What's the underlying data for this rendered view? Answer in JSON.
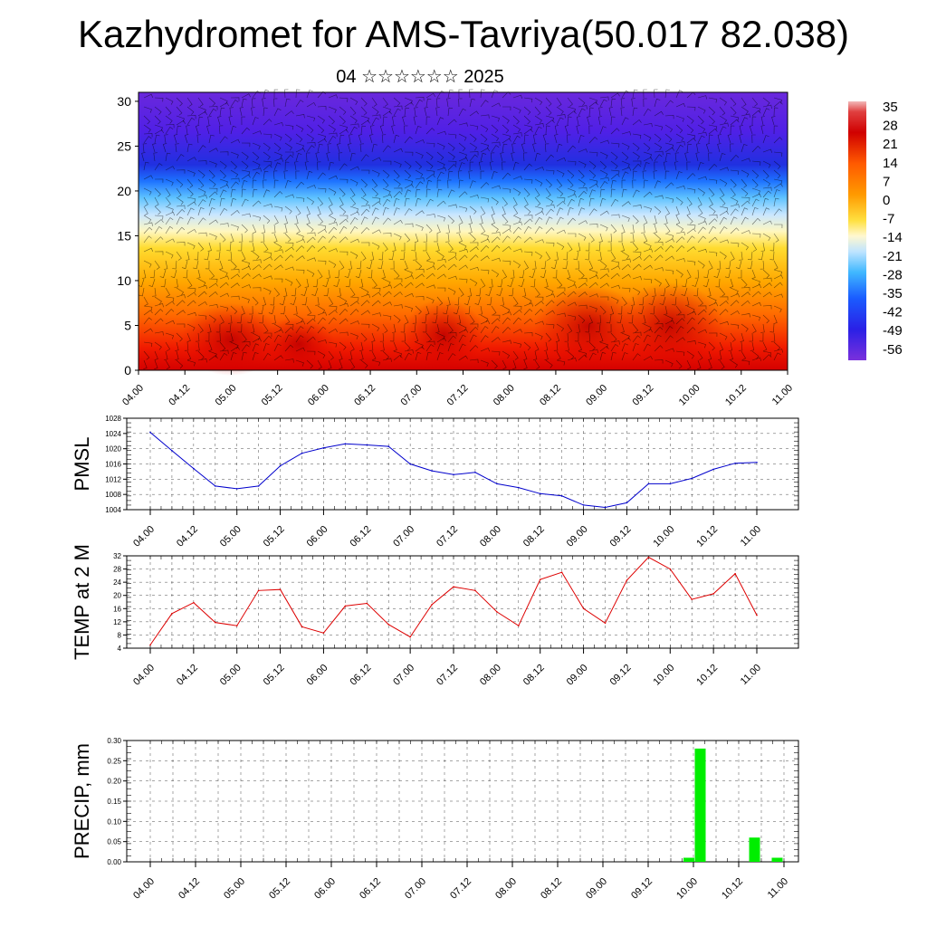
{
  "title": "Kazhydromet for AMS-Tavriya(50.017 82.038)",
  "subtitle": "04 ☆☆☆☆☆☆ 2025",
  "colors": {
    "pmsl_line": "#0000cc",
    "temp_line": "#dd0000",
    "precip_bar": "#00ee00"
  },
  "chart_data": [
    {
      "type": "heatmap",
      "title": "",
      "xlabel": "",
      "ylabel": "",
      "x_ticks": [
        "04.00",
        "04.12",
        "05.00",
        "05.12",
        "06.00",
        "06.12",
        "07.00",
        "07.12",
        "08.00",
        "08.12",
        "09.00",
        "09.12",
        "10.00",
        "10.12",
        "11.00"
      ],
      "y_ticks": [
        "0",
        "5",
        "10",
        "15",
        "20",
        "25",
        "30"
      ],
      "ylim": [
        0,
        31
      ],
      "colorbar_labels": [
        "35",
        "28",
        "21",
        "14",
        "7",
        "0",
        "-7",
        "-14",
        "-21",
        "-28",
        "-35",
        "-42",
        "-49",
        "-56"
      ],
      "overlay": "wind barbs"
    },
    {
      "type": "line",
      "ylabel": "PMSL",
      "ylim": [
        1004,
        1028
      ],
      "y_ticks": [
        "1028",
        "1024",
        "1020",
        "1016",
        "1012",
        "1008",
        "1004"
      ],
      "x_ticks": [
        "04.00",
        "04.12",
        "05.00",
        "05.12",
        "06.00",
        "06.12",
        "07.00",
        "07.12",
        "08.00",
        "08.12",
        "09.00",
        "09.12",
        "10.00",
        "10.12",
        "11.00"
      ],
      "x": [
        0,
        1,
        2,
        3,
        4,
        5,
        6,
        7,
        8,
        9,
        10,
        11,
        12,
        13,
        14,
        15,
        16,
        17,
        18,
        19,
        20,
        21,
        22,
        23,
        24,
        25,
        26,
        27,
        28
      ],
      "values": [
        1024.3,
        1019.5,
        1014.8,
        1010.2,
        1009.5,
        1010.2,
        1015.5,
        1018.8,
        1020.2,
        1021.3,
        1021.0,
        1020.6,
        1016.0,
        1014.2,
        1013.2,
        1013.8,
        1010.8,
        1009.8,
        1008.2,
        1007.6,
        1005.2,
        1004.6,
        1005.8,
        1010.8,
        1010.8,
        1012.2,
        1014.6,
        1016.2,
        1016.4
      ],
      "grid": true
    },
    {
      "type": "line",
      "ylabel": "TEMP at 2 M",
      "ylim": [
        4,
        32
      ],
      "y_ticks": [
        "32",
        "28",
        "24",
        "20",
        "16",
        "12",
        "8",
        "4"
      ],
      "x_ticks": [
        "04.00",
        "04.12",
        "05.00",
        "05.12",
        "06.00",
        "06.12",
        "07.00",
        "07.12",
        "08.00",
        "08.12",
        "09.00",
        "09.12",
        "10.00",
        "10.12",
        "11.00"
      ],
      "x": [
        0,
        1,
        2,
        3,
        4,
        5,
        6,
        7,
        8,
        9,
        10,
        11,
        12,
        13,
        14,
        15,
        16,
        17,
        18,
        19,
        20,
        21,
        22,
        23,
        24,
        25,
        26,
        27,
        28
      ],
      "values": [
        5.0,
        14.5,
        17.8,
        11.8,
        10.8,
        21.5,
        21.8,
        10.5,
        8.6,
        16.8,
        17.6,
        11.2,
        7.4,
        17.2,
        22.6,
        21.5,
        15.0,
        10.8,
        24.8,
        27.0,
        16.0,
        11.6,
        24.6,
        31.6,
        28.0,
        18.8,
        20.5,
        26.6,
        14.0
      ],
      "grid": true
    },
    {
      "type": "bar",
      "ylabel": "PRECIP, mm",
      "ylim": [
        0,
        0.3
      ],
      "y_ticks": [
        "0.30",
        "0.25",
        "0.20",
        "0.15",
        "0.10",
        "0.05",
        "0.00"
      ],
      "x_ticks": [
        "04.00",
        "04.12",
        "05.00",
        "05.12",
        "06.00",
        "06.12",
        "07.00",
        "07.12",
        "08.00",
        "08.12",
        "09.00",
        "09.12",
        "10.00",
        "10.12",
        "11.00"
      ],
      "x": [
        23.8,
        24.3,
        26.7,
        27.7
      ],
      "values": [
        0.01,
        0.28,
        0.06,
        0.01
      ],
      "grid": true
    }
  ]
}
